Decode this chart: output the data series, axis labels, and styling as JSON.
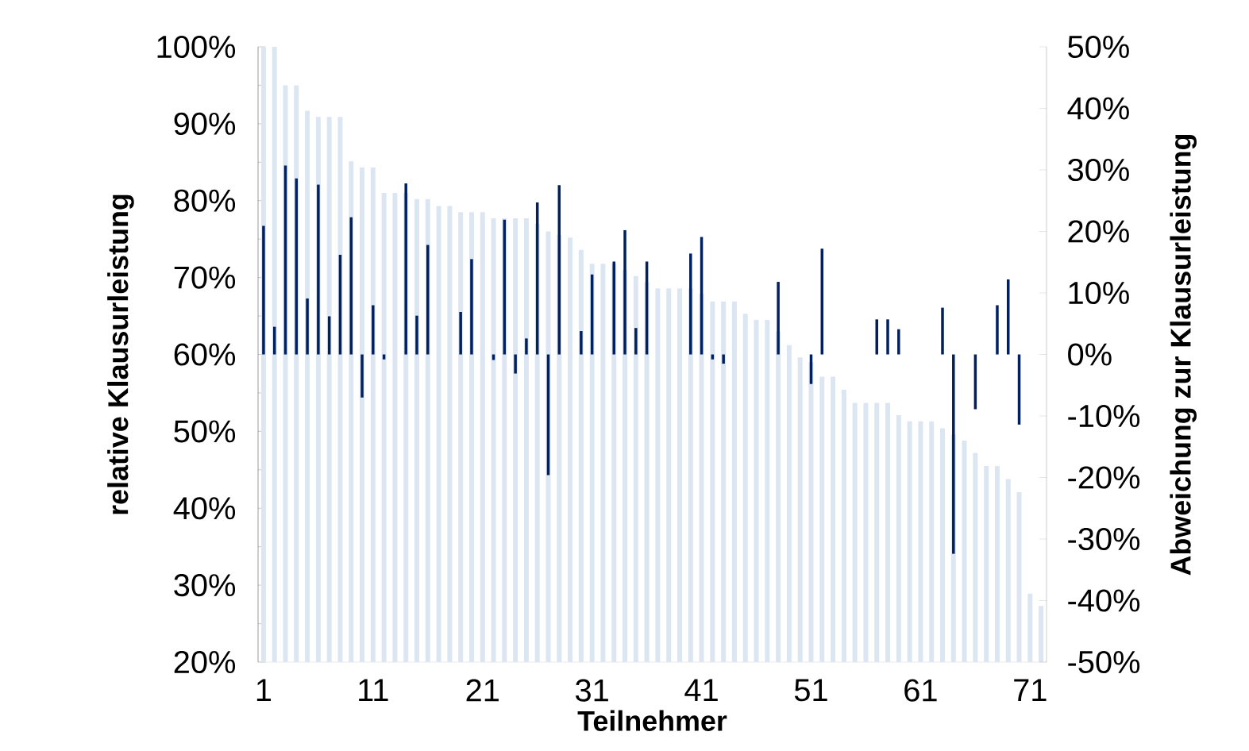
{
  "chart_data": {
    "type": "bar",
    "xlabel": "Teilnehmer",
    "ylabel": "relative Klausurleistung",
    "y2label": "Abweichung zur Klausurleistung",
    "categories": [
      "1",
      null,
      null,
      null,
      null,
      null,
      null,
      null,
      null,
      null,
      "11",
      null,
      null,
      null,
      null,
      null,
      null,
      null,
      null,
      null,
      "21",
      null,
      null,
      null,
      null,
      null,
      null,
      null,
      null,
      null,
      "31",
      null,
      null,
      null,
      null,
      null,
      null,
      null,
      null,
      null,
      "41",
      null,
      null,
      null,
      null,
      null,
      null,
      null,
      null,
      null,
      "51",
      null,
      null,
      null,
      null,
      null,
      null,
      null,
      null,
      null,
      "61",
      null,
      null,
      null,
      null,
      null,
      null,
      null,
      null,
      null,
      "71",
      null
    ],
    "series": [
      {
        "color": "#dce6f2",
        "values": [
          100,
          100,
          95,
          95,
          91.7,
          90.9,
          90.9,
          90.9,
          85.1,
          84.3,
          84.3,
          81,
          81,
          81,
          80.2,
          80.2,
          79.3,
          79.3,
          78.5,
          78.5,
          78.5,
          77.7,
          77.7,
          77.7,
          77.7,
          77,
          76,
          75.5,
          75.2,
          73.6,
          71.8,
          71.8,
          71.8,
          71,
          70.2,
          69.4,
          68.6,
          68.6,
          68.6,
          68.6,
          67.9,
          66.9,
          66.9,
          66.9,
          65.3,
          64.5,
          64.5,
          63,
          61.2,
          59.6,
          59,
          57.1,
          57.1,
          55.4,
          53.7,
          53.7,
          53.7,
          53.7,
          52.1,
          51.3,
          51.3,
          51.3,
          50.4,
          49.6,
          48.8,
          47.2,
          45.5,
          45.5,
          43.8,
          42.1,
          28.9,
          27.3
        ]
      },
      {
        "color": "#002060",
        "axis": "y2",
        "values": [
          20.9,
          4.5,
          30.7,
          28.6,
          9.1,
          27.6,
          6.2,
          16.2,
          22.3,
          -7,
          8,
          -0.8,
          null,
          27.8,
          6.3,
          17.8,
          null,
          null,
          6.9,
          15.5,
          null,
          -0.9,
          21.9,
          -3.1,
          2.6,
          24.7,
          -19.6,
          27.5,
          null,
          3.8,
          13,
          null,
          15.1,
          20.2,
          4.3,
          15.1,
          null,
          null,
          null,
          16.4,
          19.1,
          -0.8,
          -1.5,
          null,
          null,
          null,
          null,
          11.8,
          null,
          null,
          -4.8,
          17.2,
          null,
          null,
          null,
          null,
          5.7,
          5.7,
          4.1,
          null,
          null,
          null,
          7.6,
          -32.4,
          null,
          -8.9,
          null,
          8,
          12.2,
          -11.4,
          null,
          null
        ]
      }
    ],
    "ylim": [
      20,
      100
    ],
    "yticks": [
      {
        "value": 20,
        "label": "20%"
      },
      {
        "value": 25,
        "label": null
      },
      {
        "value": 30,
        "label": "30%"
      },
      {
        "value": 35,
        "label": null
      },
      {
        "value": 40,
        "label": "40%"
      },
      {
        "value": 45,
        "label": null
      },
      {
        "value": 50,
        "label": "50%"
      },
      {
        "value": 55,
        "label": null
      },
      {
        "value": 60,
        "label": "60%"
      },
      {
        "value": 65,
        "label": null
      },
      {
        "value": 70,
        "label": "70%"
      },
      {
        "value": 75,
        "label": null
      },
      {
        "value": 80,
        "label": "80%"
      },
      {
        "value": 85,
        "label": null
      },
      {
        "value": 90,
        "label": "90%"
      },
      {
        "value": 95,
        "label": null
      },
      {
        "value": 100,
        "label": "100%"
      }
    ],
    "y2lim": [
      -50,
      50
    ],
    "y2ticks": [
      {
        "value": -50,
        "label": "-50%"
      },
      {
        "value": -40,
        "label": "-40%"
      },
      {
        "value": -30,
        "label": "-30%"
      },
      {
        "value": -20,
        "label": "-20%"
      },
      {
        "value": -10,
        "label": "-10%"
      },
      {
        "value": 0,
        "label": "0%"
      },
      {
        "value": 10,
        "label": "10%"
      },
      {
        "value": 20,
        "label": "20%"
      },
      {
        "value": 30,
        "label": "30%"
      },
      {
        "value": 40,
        "label": "40%"
      },
      {
        "value": 50,
        "label": "50%"
      }
    ]
  }
}
